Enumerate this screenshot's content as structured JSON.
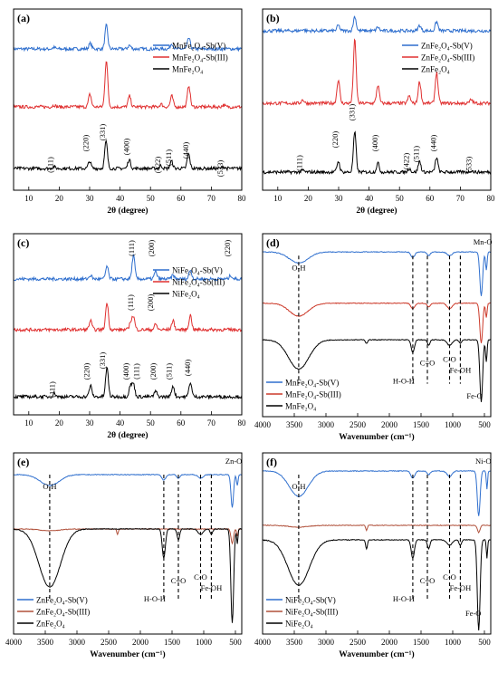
{
  "chart_data": [
    {
      "type": "line",
      "panel_label": "(a)",
      "xlabel": "2θ (degree)",
      "xlim": [
        5,
        80
      ],
      "xticks": [
        10,
        20,
        30,
        40,
        50,
        60,
        70,
        80
      ],
      "y_axis_ticks_shown": false,
      "legend_position": "top-right",
      "series": [
        {
          "name": "MnFe₂O₄-Sb(V)",
          "color": "#2f6fce",
          "baseline": 0.78,
          "peaks": [
            [
              18.3,
              0.008
            ],
            [
              30.2,
              0.03
            ],
            [
              35.5,
              0.13
            ],
            [
              43.1,
              0.02
            ],
            [
              57.0,
              0.03
            ],
            [
              62.6,
              0.06
            ]
          ]
        },
        {
          "name": "MnFe₂O₄-Sb(III)",
          "color": "#e03030",
          "baseline": 0.46,
          "peaks": [
            [
              18.3,
              0.01
            ],
            [
              30.1,
              0.07
            ],
            [
              35.5,
              0.26
            ],
            [
              43.1,
              0.06
            ],
            [
              53.5,
              0.015
            ],
            [
              57.0,
              0.06
            ],
            [
              62.6,
              0.12
            ],
            [
              74.0,
              0.01
            ]
          ]
        },
        {
          "name": "MnFe₂O₄",
          "color": "#000000",
          "baseline": 0.12,
          "peaks": [
            [
              18.2,
              0.01
            ],
            [
              30.0,
              0.04
            ],
            [
              35.4,
              0.15
            ],
            [
              43.0,
              0.05
            ],
            [
              53.4,
              0.015
            ],
            [
              56.9,
              0.04
            ],
            [
              62.5,
              0.08
            ],
            [
              73.9,
              0.01
            ]
          ]
        }
      ],
      "annotations": [
        "(111)",
        "(220)",
        "(331)",
        "(400)",
        "(422)",
        "(511)",
        "(440)",
        "(533)"
      ]
    },
    {
      "type": "line",
      "panel_label": "(b)",
      "xlabel": "2θ (degree)",
      "xlim": [
        5,
        80
      ],
      "xticks": [
        10,
        20,
        30,
        40,
        50,
        60,
        70,
        80
      ],
      "y_axis_ticks_shown": false,
      "legend_position": "top-right",
      "series": [
        {
          "name": "ZnFe₂O₄-Sb(V)",
          "color": "#2f6fce",
          "baseline": 0.88,
          "peaks": [
            [
              18.2,
              0.008
            ],
            [
              29.9,
              0.03
            ],
            [
              35.3,
              0.08
            ],
            [
              42.9,
              0.02
            ],
            [
              56.6,
              0.03
            ],
            [
              62.2,
              0.05
            ]
          ]
        },
        {
          "name": "ZnFe₂O₄-Sb(III)",
          "color": "#e03030",
          "baseline": 0.48,
          "peaks": [
            [
              18.2,
              0.02
            ],
            [
              29.9,
              0.13
            ],
            [
              35.3,
              0.35
            ],
            [
              42.9,
              0.1
            ],
            [
              53.2,
              0.04
            ],
            [
              56.6,
              0.12
            ],
            [
              62.2,
              0.17
            ],
            [
              73.6,
              0.02
            ]
          ]
        },
        {
          "name": "ZnFe₂O₄",
          "color": "#000000",
          "baseline": 0.1,
          "peaks": [
            [
              18.2,
              0.01
            ],
            [
              29.9,
              0.06
            ],
            [
              35.3,
              0.22
            ],
            [
              42.9,
              0.05
            ],
            [
              53.2,
              0.02
            ],
            [
              56.6,
              0.06
            ],
            [
              62.2,
              0.08
            ],
            [
              73.6,
              0.01
            ]
          ]
        }
      ],
      "annotations": [
        "(111)",
        "(220)",
        "(331)",
        "(400)",
        "(422)",
        "(511)",
        "(440)",
        "(533)"
      ]
    },
    {
      "type": "line",
      "panel_label": "(c)",
      "xlabel": "2θ (degree)",
      "xlim": [
        5,
        80
      ],
      "xticks": [
        10,
        20,
        30,
        40,
        50,
        60,
        70,
        80
      ],
      "y_axis_ticks_shown": false,
      "legend_position": "top-right",
      "series": [
        {
          "name": "NiFe₂O₄-Sb(V)",
          "color": "#2f6fce",
          "baseline": 0.75,
          "peaks": [
            [
              30.3,
              0.02
            ],
            [
              35.7,
              0.07
            ],
            [
              44.4,
              0.13
            ],
            [
              51.7,
              0.04
            ],
            [
              57.4,
              0.02
            ],
            [
              63.1,
              0.05
            ],
            [
              76.4,
              0.02
            ]
          ]
        },
        {
          "name": "NiFe₂O₄-Sb(III)",
          "color": "#e03030",
          "baseline": 0.47,
          "peaks": [
            [
              30.3,
              0.05
            ],
            [
              35.7,
              0.15
            ],
            [
              43.5,
              0.04
            ],
            [
              44.4,
              0.07
            ],
            [
              51.7,
              0.03
            ],
            [
              57.4,
              0.05
            ],
            [
              63.1,
              0.08
            ]
          ]
        },
        {
          "name": "NiFe₂O₄",
          "color": "#000000",
          "baseline": 0.1,
          "peaks": [
            [
              18.4,
              0.02
            ],
            [
              30.3,
              0.06
            ],
            [
              35.7,
              0.16
            ],
            [
              43.4,
              0.06
            ],
            [
              44.4,
              0.07
            ],
            [
              51.7,
              0.03
            ],
            [
              57.4,
              0.06
            ],
            [
              63.1,
              0.08
            ]
          ]
        }
      ],
      "annotations": [
        "(111)",
        "(220)",
        "(331)",
        "(400)",
        "(111)",
        "(200)",
        "(511)",
        "(440)",
        "(111)",
        "(200)",
        "(111)",
        "(200)",
        "(220)"
      ]
    },
    {
      "type": "line",
      "panel_label": "(d)",
      "xlabel": "Wavenumber (cm⁻¹)",
      "xlim": [
        4000,
        400
      ],
      "x_reversed": true,
      "xticks": [
        4000,
        3500,
        3000,
        2500,
        2000,
        1500,
        1000,
        500
      ],
      "y_axis_ticks_shown": false,
      "legend_position": "bottom-left",
      "series": [
        {
          "name": "MnFe₂O₄-Sb(V)",
          "color": "#2f6fce",
          "baseline": 0.9,
          "bands": [
            [
              3430,
              0.06,
              150
            ],
            [
              1630,
              0.03,
              30
            ],
            [
              1380,
              0.02,
              25
            ],
            [
              1050,
              0.02,
              40
            ],
            [
              550,
              0.24,
              22
            ],
            [
              470,
              0.1,
              12
            ]
          ]
        },
        {
          "name": "MnFe₂O₄-Sb(III)",
          "color": "#cc3a2a",
          "baseline": 0.62,
          "bands": [
            [
              3430,
              0.07,
              150
            ],
            [
              1630,
              0.03,
              30
            ],
            [
              1380,
              0.02,
              25
            ],
            [
              1050,
              0.03,
              40
            ],
            [
              550,
              0.22,
              22
            ],
            [
              470,
              0.08,
              12
            ]
          ]
        },
        {
          "name": "MnFe₂O₄",
          "color": "#000000",
          "baseline": 0.42,
          "bands": [
            [
              3430,
              0.16,
              160
            ],
            [
              2360,
              0.02,
              15
            ],
            [
              1630,
              0.07,
              25
            ],
            [
              1380,
              0.03,
              20
            ],
            [
              1050,
              0.03,
              40
            ],
            [
              880,
              0.02,
              20
            ],
            [
              550,
              0.34,
              22
            ],
            [
              470,
              0.12,
              12
            ]
          ]
        }
      ],
      "band_labels": [
        "O-H",
        "H-O-H",
        "C=O",
        "C-O",
        "Fe-OH",
        "Fe-O",
        "Mn-O"
      ],
      "band_positions": [
        3430,
        1630,
        1400,
        1050,
        880,
        570,
        470
      ]
    },
    {
      "type": "line",
      "panel_label": "(e)",
      "xlabel": "Wavenumber (cm⁻¹)",
      "xlim": [
        4000,
        400
      ],
      "x_reversed": true,
      "xticks": [
        4000,
        3500,
        3000,
        2500,
        2000,
        1500,
        1000,
        500
      ],
      "y_axis_ticks_shown": false,
      "legend_position": "bottom-left",
      "series": [
        {
          "name": "ZnFe₂O₄-Sb(V)",
          "color": "#2f6fce",
          "baseline": 0.88,
          "bands": [
            [
              3430,
              0.06,
              150
            ],
            [
              1630,
              0.03,
              30
            ],
            [
              1400,
              0.02,
              25
            ],
            [
              1050,
              0.02,
              40
            ],
            [
              550,
              0.18,
              20
            ],
            [
              470,
              0.06,
              12
            ]
          ]
        },
        {
          "name": "ZnFe₂O₄-Sb(III)",
          "color": "#b0503a",
          "baseline": 0.58,
          "bands": [
            [
              3430,
              0.01,
              150
            ],
            [
              2360,
              0.03,
              12
            ],
            [
              550,
              0.08,
              20
            ],
            [
              470,
              0.04,
              10
            ]
          ]
        },
        {
          "name": "ZnFe₂O₄",
          "color": "#000000",
          "baseline": 0.58,
          "bands": [
            [
              3430,
              0.32,
              170
            ],
            [
              1630,
              0.16,
              25
            ],
            [
              1400,
              0.06,
              20
            ],
            [
              1050,
              0.03,
              40
            ],
            [
              880,
              0.03,
              20
            ],
            [
              550,
              0.52,
              22
            ],
            [
              470,
              0.08,
              10
            ]
          ]
        }
      ],
      "band_labels": [
        "O-H",
        "H-O-H",
        "C=O",
        "C-O",
        "Fe-OH",
        "Zn-O"
      ],
      "band_positions": [
        3430,
        1630,
        1400,
        1050,
        880,
        470
      ]
    },
    {
      "type": "line",
      "panel_label": "(f)",
      "xlabel": "Wavenumber (cm⁻¹)",
      "xlim": [
        4000,
        400
      ],
      "x_reversed": true,
      "xticks": [
        4000,
        3500,
        3000,
        2500,
        2000,
        1500,
        1000,
        500
      ],
      "y_axis_ticks_shown": false,
      "legend_position": "bottom-left",
      "series": [
        {
          "name": "NiFe₂O₄-Sb(V)",
          "color": "#2f6fce",
          "baseline": 0.9,
          "bands": [
            [
              3430,
              0.14,
              150
            ],
            [
              1630,
              0.04,
              30
            ],
            [
              1380,
              0.02,
              25
            ],
            [
              1050,
              0.03,
              40
            ],
            [
              590,
              0.25,
              22
            ],
            [
              460,
              0.1,
              10
            ]
          ]
        },
        {
          "name": "NiFe₂O₄-Sb(III)",
          "color": "#b0503a",
          "baseline": 0.6,
          "bands": [
            [
              3430,
              0.01,
              150
            ],
            [
              2360,
              0.03,
              12
            ],
            [
              590,
              0.04,
              20
            ]
          ]
        },
        {
          "name": "NiFe₂O₄",
          "color": "#000000",
          "baseline": 0.52,
          "bands": [
            [
              3430,
              0.25,
              170
            ],
            [
              2360,
              0.05,
              14
            ],
            [
              1630,
              0.1,
              25
            ],
            [
              1380,
              0.05,
              20
            ],
            [
              1050,
              0.03,
              40
            ],
            [
              880,
              0.03,
              20
            ],
            [
              590,
              0.5,
              22
            ],
            [
              460,
              0.1,
              10
            ]
          ]
        }
      ],
      "band_labels": [
        "O-H",
        "H-O-H",
        "C=O",
        "C-O",
        "Fe-OH",
        "Fe-O",
        "Ni-O"
      ],
      "band_positions": [
        3430,
        1630,
        1400,
        1050,
        880,
        590,
        460
      ]
    }
  ]
}
